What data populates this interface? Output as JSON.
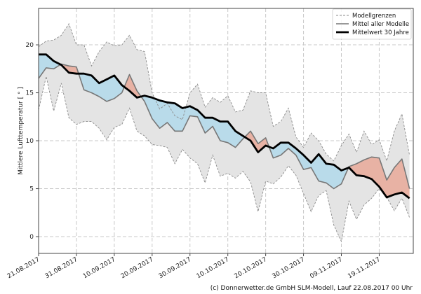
{
  "chart_data": {
    "type": "line",
    "title": "",
    "xlabel": "",
    "ylabel": "Mittlere Lufttemperatur [ ° ]",
    "ylim": [
      -1.75,
      23.8
    ],
    "xlim": [
      "2017-08-21",
      "2017-11-28"
    ],
    "grid": true,
    "legend_position": "top-right",
    "x_tick_labels": [
      "21.08.2017",
      "31.08.2017",
      "10.09.2017",
      "20.09.2017",
      "30.09.2017",
      "10.10.2017",
      "20.10.2017",
      "30.10.2017",
      "09.11.2017",
      "19.11.2017"
    ],
    "x_tick_dates": [
      "2017-08-21",
      "2017-08-31",
      "2017-09-10",
      "2017-09-20",
      "2017-09-30",
      "2017-10-10",
      "2017-10-20",
      "2017-10-30",
      "2017-11-09",
      "2017-11-19"
    ],
    "y_ticks": [
      0,
      5,
      10,
      15,
      20
    ],
    "x": [
      "2017-08-21",
      "2017-08-23",
      "2017-08-25",
      "2017-08-27",
      "2017-08-29",
      "2017-08-31",
      "2017-09-02",
      "2017-09-04",
      "2017-09-06",
      "2017-09-08",
      "2017-09-10",
      "2017-09-12",
      "2017-09-14",
      "2017-09-16",
      "2017-09-18",
      "2017-09-20",
      "2017-09-22",
      "2017-09-24",
      "2017-09-26",
      "2017-09-28",
      "2017-09-30",
      "2017-10-02",
      "2017-10-04",
      "2017-10-06",
      "2017-10-08",
      "2017-10-10",
      "2017-10-12",
      "2017-10-14",
      "2017-10-16",
      "2017-10-18",
      "2017-10-20",
      "2017-10-22",
      "2017-10-24",
      "2017-10-26",
      "2017-10-28",
      "2017-10-30",
      "2017-11-01",
      "2017-11-03",
      "2017-11-05",
      "2017-11-07",
      "2017-11-09",
      "2017-11-11",
      "2017-11-13",
      "2017-11-15",
      "2017-11-17",
      "2017-11-19",
      "2017-11-21",
      "2017-11-23",
      "2017-11-25",
      "2017-11-27"
    ],
    "series": [
      {
        "name": "Modellgrenzen",
        "role": "upper",
        "values": [
          19.8,
          20.4,
          20.5,
          21.0,
          22.2,
          20.0,
          20.0,
          17.8,
          19.3,
          20.3,
          19.9,
          20.0,
          21.0,
          19.5,
          19.3,
          15.0,
          13.3,
          13.9,
          12.6,
          12.2,
          15.0,
          15.9,
          13.5,
          14.5,
          14.0,
          14.7,
          13.0,
          13.2,
          15.2,
          15.0,
          15.0,
          11.5,
          12.0,
          13.4,
          10.4,
          9.3,
          10.8,
          10.0,
          8.6,
          7.9,
          9.5,
          10.7,
          8.8,
          11.0,
          9.6,
          10.1,
          7.9,
          11.0,
          12.8,
          8.5
        ]
      },
      {
        "name": "Modellgrenzen",
        "role": "lower",
        "values": [
          13.2,
          16.7,
          13.1,
          16.0,
          12.4,
          11.7,
          12.0,
          12.0,
          11.3,
          10.1,
          11.4,
          11.7,
          13.4,
          11.0,
          10.5,
          9.6,
          9.5,
          9.3,
          7.6,
          9.1,
          8.2,
          7.6,
          5.6,
          8.5,
          6.3,
          6.6,
          6.1,
          6.8,
          5.7,
          2.6,
          5.8,
          5.5,
          6.2,
          7.4,
          6.4,
          4.5,
          2.6,
          4.3,
          4.8,
          1.2,
          -0.5,
          3.7,
          1.8,
          3.3,
          4.0,
          5.0,
          4.1,
          2.7,
          4.0,
          2.0
        ]
      },
      {
        "name": "Mittel aller Modelle",
        "values": [
          16.5,
          17.6,
          17.5,
          18.0,
          17.8,
          17.7,
          15.3,
          15.0,
          14.6,
          14.1,
          14.4,
          15.0,
          16.9,
          15.2,
          14.1,
          12.3,
          11.3,
          11.9,
          11.0,
          11.0,
          12.6,
          12.5,
          10.8,
          11.5,
          10.0,
          9.8,
          9.3,
          10.2,
          11.0,
          9.7,
          10.3,
          8.2,
          8.5,
          9.2,
          8.5,
          7.0,
          7.2,
          5.8,
          5.6,
          5.0,
          5.5,
          7.3,
          7.6,
          8.0,
          8.3,
          8.2,
          5.9,
          7.2,
          8.1,
          5.0
        ]
      },
      {
        "name": "Mittelwert 30 Jahre",
        "values": [
          19.0,
          19.0,
          18.3,
          17.9,
          17.1,
          17.0,
          17.0,
          16.8,
          16.0,
          16.4,
          16.8,
          15.8,
          15.2,
          14.5,
          14.7,
          14.5,
          14.2,
          14.0,
          13.9,
          13.4,
          13.6,
          13.2,
          12.4,
          12.4,
          12.0,
          12.0,
          11.0,
          10.5,
          10.0,
          8.8,
          9.5,
          9.2,
          9.8,
          9.8,
          9.2,
          8.5,
          7.7,
          8.6,
          7.6,
          7.5,
          6.9,
          7.2,
          6.4,
          6.3,
          6.0,
          5.2,
          4.1,
          4.4,
          4.6,
          4.0
        ]
      }
    ],
    "legend": [
      "Modellgrenzen",
      "Mittel aller Modelle",
      "Mittelwert 30 Jahre"
    ],
    "colors": {
      "band": "#e4e4e4",
      "band_edge": "#8c8c8c",
      "model_mean": "#777777",
      "climate_mean": "#000000",
      "above_climate": "#e8b2a4",
      "below_climate": "#b9dbea"
    }
  },
  "footer": "(c) Donnerwetter.de GmbH SLM-Modell, Lauf 22.08.2017 00 Uhr"
}
